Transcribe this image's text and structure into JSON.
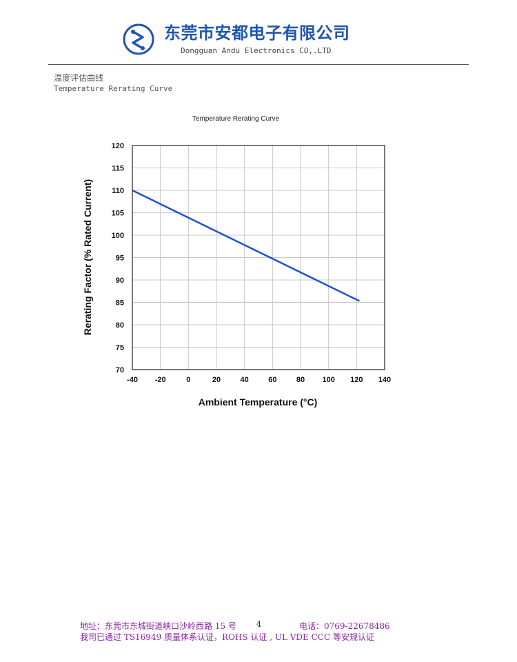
{
  "header": {
    "company_cn": "东莞市安都电子有限公司",
    "company_en": "Dongguan Andu Electronics CO,.LTD",
    "logo_icon": "andu-logo-icon",
    "brand_color": "#1f56b0"
  },
  "section": {
    "title_cn": "温度评估曲线",
    "title_en": "Temperature Rerating Curve"
  },
  "chart_data": {
    "type": "line",
    "title": "Temperature Rerating Curve",
    "xlabel": "Ambient Temperature (°C)",
    "ylabel": "Rerating Factor (% Rated Current)",
    "xlim": [
      -40,
      140
    ],
    "ylim": [
      70,
      120
    ],
    "xticks": [
      -40,
      -20,
      0,
      20,
      40,
      60,
      80,
      100,
      120,
      140
    ],
    "yticks": [
      70,
      75,
      80,
      85,
      90,
      95,
      100,
      105,
      110,
      115,
      120
    ],
    "grid": true,
    "series": [
      {
        "color": "#1d4fd6",
        "x": [
          -40,
          122
        ],
        "y": [
          110,
          85.3
        ]
      }
    ]
  },
  "footer": {
    "address": "地址：东莞市东城街道峡口沙岭西路 15 号",
    "page_number": "4",
    "phone": "电话：0769-22678486",
    "certifications": "我司已通过 TS16949 质量体系认证，ROHS 认证 , UL VDE    CCC  等安规认证"
  }
}
